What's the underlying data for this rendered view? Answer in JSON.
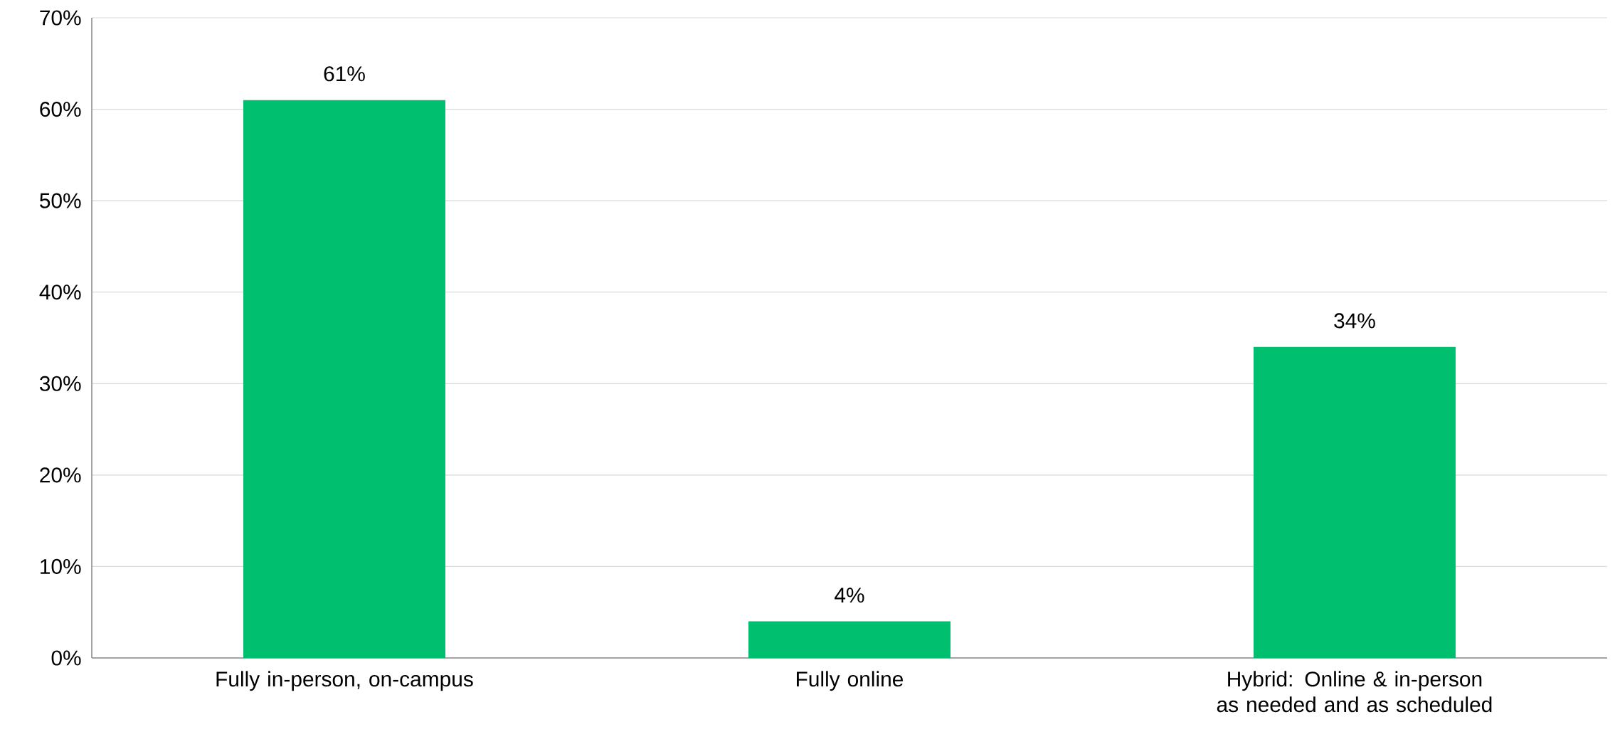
{
  "chart_data": {
    "type": "bar",
    "categories": [
      "Fully in-person, on-campus",
      "Fully online",
      "Hybrid: Online & in-person as needed and as scheduled"
    ],
    "values": [
      61,
      4,
      34
    ],
    "value_labels": [
      "61%",
      "4%",
      "34%"
    ],
    "color": "#00bf6f",
    "ylim": [
      0,
      70
    ],
    "yticks": [
      {
        "value": 0,
        "label": "0%"
      },
      {
        "value": 10,
        "label": "10%"
      },
      {
        "value": 20,
        "label": "20%"
      },
      {
        "value": 30,
        "label": "30%"
      },
      {
        "value": 40,
        "label": "40%"
      },
      {
        "value": 50,
        "label": "50%"
      },
      {
        "value": 60,
        "label": "60%"
      },
      {
        "value": 70,
        "label": "70%"
      }
    ],
    "grid": "y"
  }
}
